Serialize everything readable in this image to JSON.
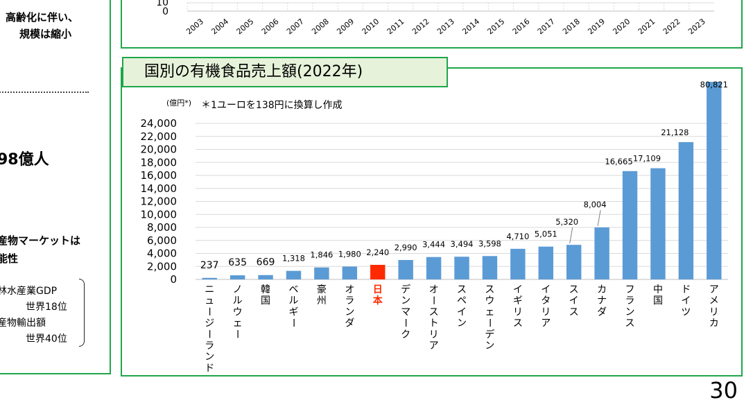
{
  "left_panel": {
    "line1": "高齢化に伴い、",
    "line2": "規模は縮小",
    "big": "98億人",
    "line3": "産物マーケットは",
    "line4": "能性",
    "stat1": "林水産業GDP",
    "stat2": "世界18位",
    "stat3": "産物輸出額",
    "stat4": "世界40位"
  },
  "top_chart": {
    "years": [
      "2003",
      "2004",
      "2005",
      "2006",
      "2007",
      "2008",
      "2009",
      "2010",
      "2011",
      "2012",
      "2013",
      "2014",
      "2015",
      "2016",
      "2017",
      "2018",
      "2019",
      "2020",
      "2021",
      "2022",
      "2023"
    ],
    "y_ticks": [
      "10",
      "0"
    ]
  },
  "chart_title": "国別の有機食品売上額(2022年)",
  "page_number": "30",
  "chart_data": {
    "type": "bar",
    "title": "国別の有機食品売上額(2022年)",
    "unit_label": "(億円*)",
    "note": "＊1ユーロを138円に換算し作成",
    "ylim": [
      0,
      24000
    ],
    "y_ticks": [
      "0",
      "2,000",
      "4,000",
      "6,000",
      "8,000",
      "10,000",
      "12,000",
      "14,000",
      "16,000",
      "18,000",
      "20,000",
      "22,000",
      "24,000"
    ],
    "categories": [
      "ニュージーランド",
      "ノルウェー",
      "韓国",
      "ベルギー",
      "豪州",
      "オランダ",
      "日本",
      "デンマーク",
      "オーストリア",
      "スペイン",
      "スウェーデン",
      "イギリス",
      "イタリア",
      "スイス",
      "カナダ",
      "フランス",
      "中国",
      "ドイツ",
      "アメリカ"
    ],
    "values": [
      237,
      635,
      669,
      1318,
      1846,
      1980,
      2240,
      2990,
      3444,
      3494,
      3598,
      4710,
      5051,
      5320,
      8004,
      16665,
      17109,
      21128,
      80821
    ],
    "value_labels": [
      "237",
      "635",
      "669",
      "1,318",
      "1,846",
      "1,980",
      "2,240",
      "2,990",
      "3,444",
      "3,494",
      "3,598",
      "4,710",
      "5,051",
      "5,320",
      "8,004",
      "16,665",
      "17,109",
      "21,128",
      "80,821"
    ],
    "bar_color": "#5b9bd5",
    "highlight_color": "#ff2a00",
    "highlight_category": "日本",
    "grid": true
  }
}
